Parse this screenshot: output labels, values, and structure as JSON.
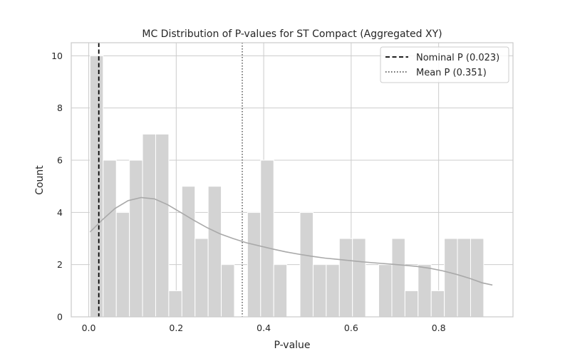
{
  "chart_data": {
    "type": "bar",
    "title": "MC Distribution of P-values for ST Compact (Aggregated XY)",
    "xlabel": "P-value",
    "ylabel": "Count",
    "xlim": [
      -0.04,
      0.97
    ],
    "ylim": [
      0,
      10.5
    ],
    "xticks": [
      "0.0",
      "0.2",
      "0.4",
      "0.6",
      "0.8"
    ],
    "xtick_values": [
      0.0,
      0.2,
      0.4,
      0.6,
      0.8
    ],
    "yticks": [
      "0",
      "2",
      "4",
      "6",
      "8",
      "10"
    ],
    "ytick_values": [
      0,
      2,
      4,
      6,
      8,
      10
    ],
    "grid": true,
    "legend_position": "top-right",
    "bin_width": 0.03,
    "bin_starts": [
      0.003,
      0.033,
      0.063,
      0.093,
      0.123,
      0.153,
      0.183,
      0.213,
      0.243,
      0.273,
      0.303,
      0.333,
      0.363,
      0.393,
      0.423,
      0.453,
      0.483,
      0.513,
      0.543,
      0.573,
      0.603,
      0.633,
      0.663,
      0.693,
      0.723,
      0.753,
      0.783,
      0.813,
      0.843,
      0.873,
      0.903
    ],
    "counts": [
      10,
      6,
      4,
      6,
      7,
      7,
      1,
      5,
      3,
      5,
      2,
      0,
      4,
      6,
      2,
      0,
      4,
      2,
      2,
      3,
      3,
      0,
      2,
      3,
      1,
      2,
      1,
      3,
      3,
      3,
      0
    ],
    "bar_color": "#d3d3d3",
    "kde": {
      "color": "#a9a9a9",
      "x": [
        0.003,
        0.03,
        0.06,
        0.09,
        0.12,
        0.15,
        0.18,
        0.21,
        0.24,
        0.27,
        0.3,
        0.33,
        0.36,
        0.39,
        0.42,
        0.45,
        0.48,
        0.51,
        0.54,
        0.57,
        0.6,
        0.63,
        0.66,
        0.69,
        0.72,
        0.75,
        0.78,
        0.81,
        0.84,
        0.87,
        0.9,
        0.923
      ],
      "y": [
        3.25,
        3.7,
        4.15,
        4.45,
        4.57,
        4.52,
        4.3,
        4.0,
        3.7,
        3.42,
        3.18,
        3.0,
        2.84,
        2.72,
        2.6,
        2.49,
        2.4,
        2.32,
        2.25,
        2.2,
        2.15,
        2.1,
        2.06,
        2.02,
        1.98,
        1.93,
        1.86,
        1.76,
        1.63,
        1.48,
        1.3,
        1.22
      ]
    },
    "reference_lines": [
      {
        "label": "Nominal P (0.023)",
        "x": 0.023,
        "style": "dashed",
        "color": "#000000"
      },
      {
        "label": "Mean P (0.351)",
        "x": 0.351,
        "style": "dotted",
        "color": "#555555"
      }
    ]
  }
}
